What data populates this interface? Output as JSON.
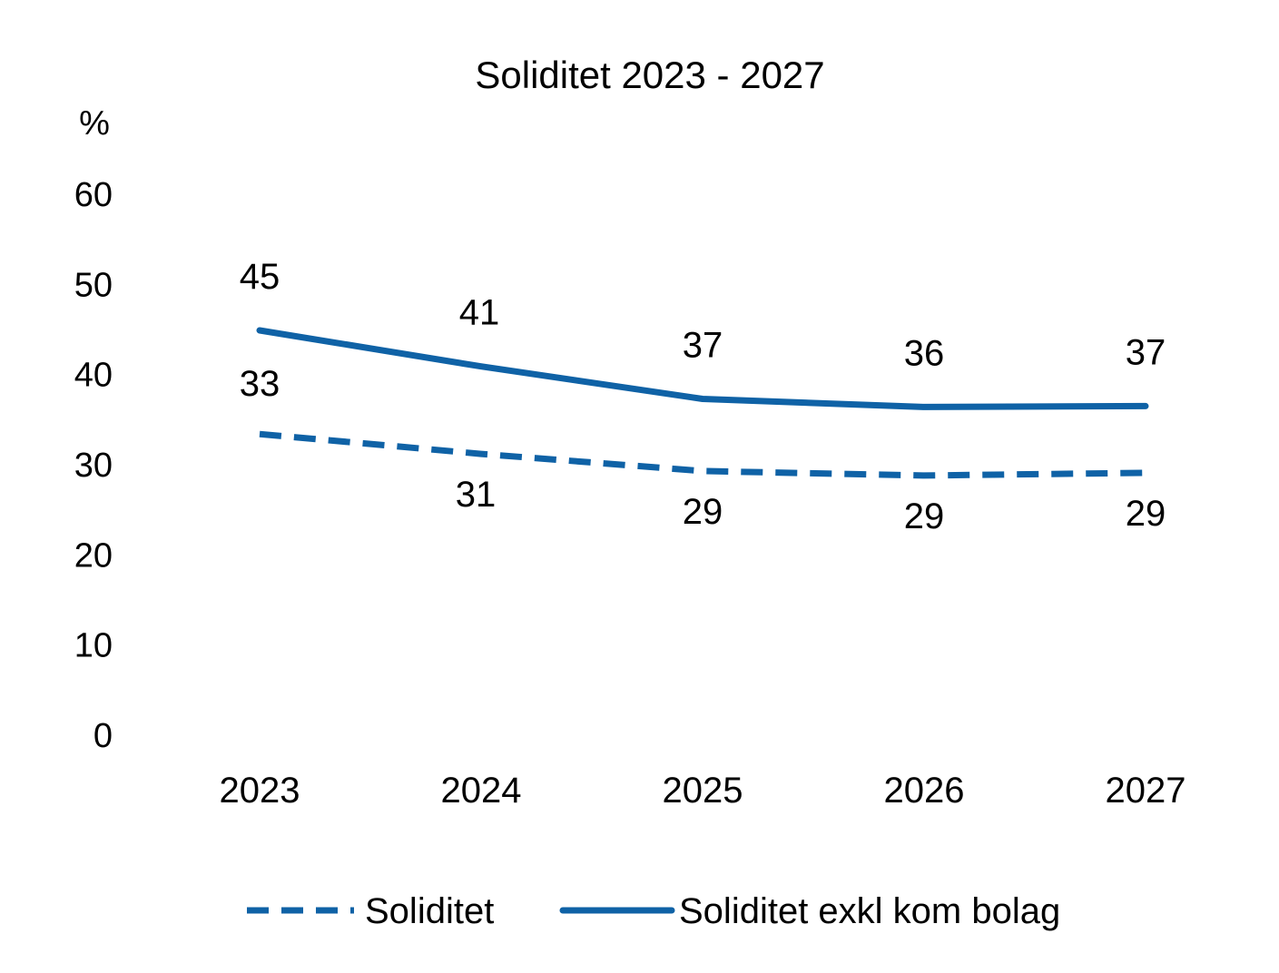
{
  "chart_data": {
    "type": "line",
    "title": "Soliditet 2023 - 2027",
    "ylabel": "%",
    "xlabel": "",
    "categories": [
      "2023",
      "2024",
      "2025",
      "2026",
      "2027"
    ],
    "ylim": [
      0,
      60
    ],
    "yticks": [
      0,
      10,
      20,
      30,
      40,
      50,
      60
    ],
    "grid": false,
    "legend_position": "bottom",
    "series": [
      {
        "name": "Soliditet",
        "values": [
          33.4,
          31.2,
          29.3,
          28.8,
          29.1
        ],
        "labels": [
          "33",
          "31",
          "29",
          "29",
          "29"
        ],
        "style": "dashed",
        "color": "#0F62A6",
        "label_position": "mixed"
      },
      {
        "name": "Soliditet exkl kom bolag",
        "values": [
          44.9,
          40.9,
          37.3,
          36.4,
          36.5
        ],
        "labels": [
          "45",
          "41",
          "37",
          "36",
          "37"
        ],
        "style": "solid",
        "color": "#0F62A6",
        "label_position": "above"
      }
    ]
  }
}
